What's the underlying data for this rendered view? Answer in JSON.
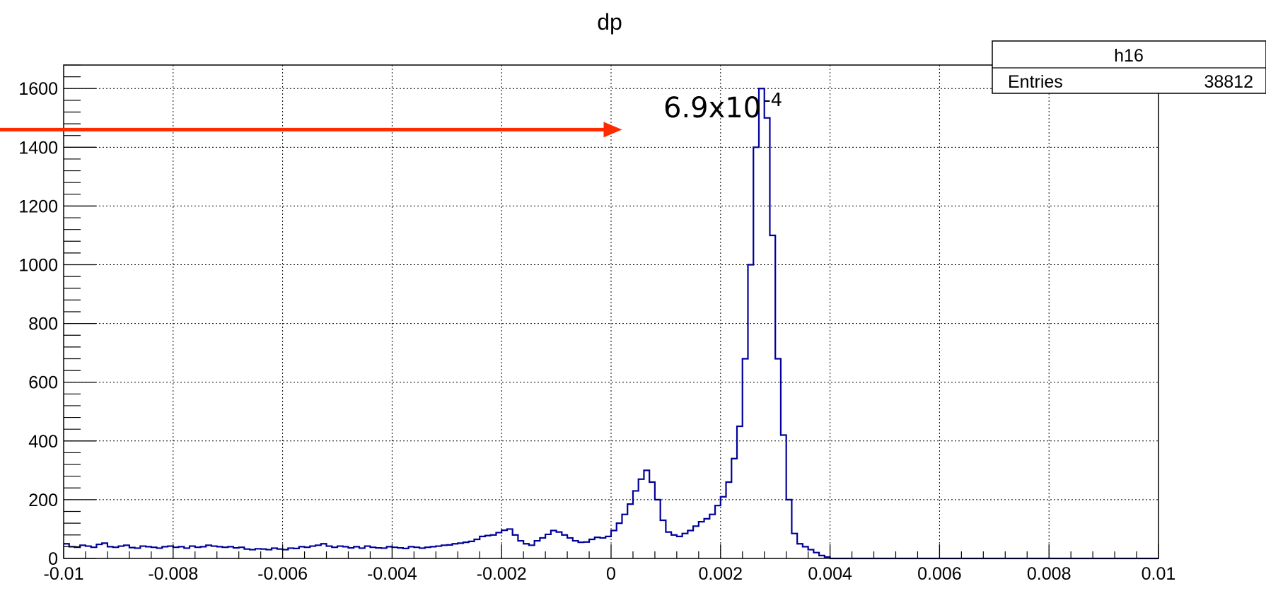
{
  "chart_data": {
    "type": "histogram",
    "title": "dp",
    "xlabel": "",
    "ylabel": "",
    "xlim": [
      -0.01,
      0.01
    ],
    "ylim": [
      0,
      1680
    ],
    "grid": true,
    "x_ticks": [
      "-0.01",
      "-0.008",
      "-0.006",
      "-0.004",
      "-0.002",
      "0",
      "0.002",
      "0.004",
      "0.006",
      "0.008",
      "0.01"
    ],
    "y_ticks": [
      "0",
      "200",
      "400",
      "600",
      "800",
      "1000",
      "1200",
      "1400",
      "1600"
    ],
    "line_color": "#000099",
    "stats_box": {
      "name": "h16",
      "entries_label": "Entries",
      "entries_value": "38812"
    },
    "annotation": {
      "text": "6.9x10",
      "exponent": "-4",
      "arrow_color": "#ff2a00",
      "arrow_y": 1460,
      "arrow_tip_x": 0.0002
    },
    "bins": {
      "start": -0.01,
      "width": 0.0001,
      "values": [
        50,
        40,
        38,
        45,
        42,
        38,
        48,
        52,
        40,
        38,
        42,
        45,
        37,
        35,
        42,
        40,
        38,
        35,
        40,
        42,
        38,
        40,
        35,
        42,
        38,
        40,
        45,
        42,
        40,
        38,
        40,
        36,
        38,
        32,
        30,
        33,
        32,
        30,
        35,
        32,
        30,
        35,
        34,
        40,
        38,
        42,
        45,
        50,
        42,
        38,
        42,
        40,
        36,
        40,
        35,
        42,
        38,
        36,
        35,
        40,
        38,
        36,
        34,
        40,
        38,
        35,
        38,
        40,
        42,
        45,
        46,
        50,
        52,
        55,
        58,
        65,
        75,
        78,
        80,
        88,
        96,
        100,
        80,
        60,
        50,
        45,
        60,
        70,
        82,
        95,
        90,
        80,
        70,
        60,
        55,
        56,
        65,
        72,
        70,
        75,
        95,
        120,
        150,
        185,
        230,
        270,
        300,
        260,
        200,
        130,
        90,
        80,
        75,
        85,
        95,
        110,
        125,
        135,
        150,
        180,
        210,
        260,
        340,
        450,
        680,
        1000,
        1400,
        1600,
        1500,
        1100,
        680,
        420,
        200,
        85,
        50,
        40,
        30,
        20,
        10,
        5,
        0,
        0,
        0,
        0,
        0,
        0,
        0,
        0,
        0,
        0,
        0,
        0,
        0,
        0,
        0,
        0,
        0,
        0,
        0,
        0,
        0,
        0,
        0,
        0,
        0,
        0,
        0,
        0,
        0,
        0,
        0,
        0,
        0,
        0,
        0,
        0,
        0,
        0,
        0,
        0,
        0,
        0,
        0,
        0,
        0,
        0,
        0,
        0,
        0,
        0,
        0,
        0,
        0,
        0,
        0,
        0,
        0,
        0,
        0,
        0
      ]
    }
  }
}
